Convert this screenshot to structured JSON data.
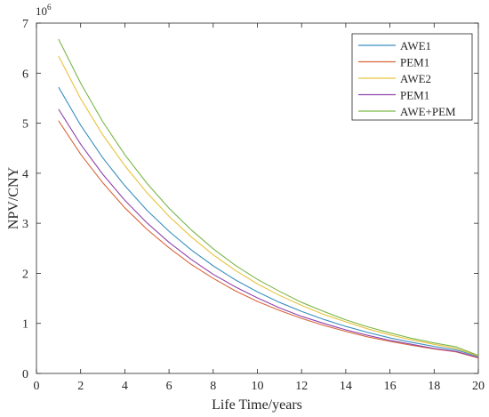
{
  "chart_data": {
    "type": "line",
    "title": "",
    "xlabel": "Life Time/years",
    "ylabel": "NPV/CNY",
    "y_scale_label": "10",
    "y_scale_exponent": "6",
    "xlim": [
      0,
      20
    ],
    "ylim": [
      0,
      7
    ],
    "xticks": [
      0,
      2,
      4,
      6,
      8,
      10,
      12,
      14,
      16,
      18,
      20
    ],
    "yticks": [
      0,
      1,
      2,
      3,
      4,
      5,
      6,
      7
    ],
    "grid": false,
    "legend_position": "top-right",
    "x": [
      1,
      2,
      3,
      4,
      5,
      6,
      7,
      8,
      9,
      10,
      11,
      12,
      13,
      14,
      15,
      16,
      17,
      18,
      19,
      20
    ],
    "series": [
      {
        "name": "AWE1",
        "color": "#3a8fbf",
        "values": [
          5.72,
          4.96,
          4.31,
          3.75,
          3.26,
          2.84,
          2.47,
          2.15,
          1.87,
          1.63,
          1.42,
          1.24,
          1.08,
          0.94,
          0.82,
          0.71,
          0.62,
          0.54,
          0.47,
          0.34
        ]
      },
      {
        "name": "PEM1",
        "color": "#d9653b",
        "values": [
          5.05,
          4.38,
          3.81,
          3.31,
          2.88,
          2.51,
          2.18,
          1.9,
          1.65,
          1.44,
          1.26,
          1.1,
          0.96,
          0.84,
          0.73,
          0.64,
          0.56,
          0.49,
          0.43,
          0.31
        ]
      },
      {
        "name": "AWE2",
        "color": "#e8c23a",
        "values": [
          6.34,
          5.49,
          4.77,
          4.15,
          3.61,
          3.14,
          2.73,
          2.37,
          2.06,
          1.79,
          1.56,
          1.36,
          1.18,
          1.03,
          0.89,
          0.77,
          0.67,
          0.58,
          0.5,
          0.35
        ]
      },
      {
        "name": "PEM1",
        "color": "#8e44ad",
        "values": [
          5.28,
          4.58,
          3.98,
          3.46,
          3.01,
          2.62,
          2.28,
          1.98,
          1.73,
          1.51,
          1.31,
          1.14,
          1.0,
          0.87,
          0.76,
          0.66,
          0.58,
          0.5,
          0.44,
          0.32
        ]
      },
      {
        "name": "AWE+PEM",
        "color": "#7ab648",
        "values": [
          6.68,
          5.8,
          5.03,
          4.37,
          3.8,
          3.3,
          2.87,
          2.49,
          2.16,
          1.88,
          1.64,
          1.42,
          1.24,
          1.07,
          0.93,
          0.81,
          0.7,
          0.61,
          0.53,
          0.36
        ]
      }
    ]
  }
}
